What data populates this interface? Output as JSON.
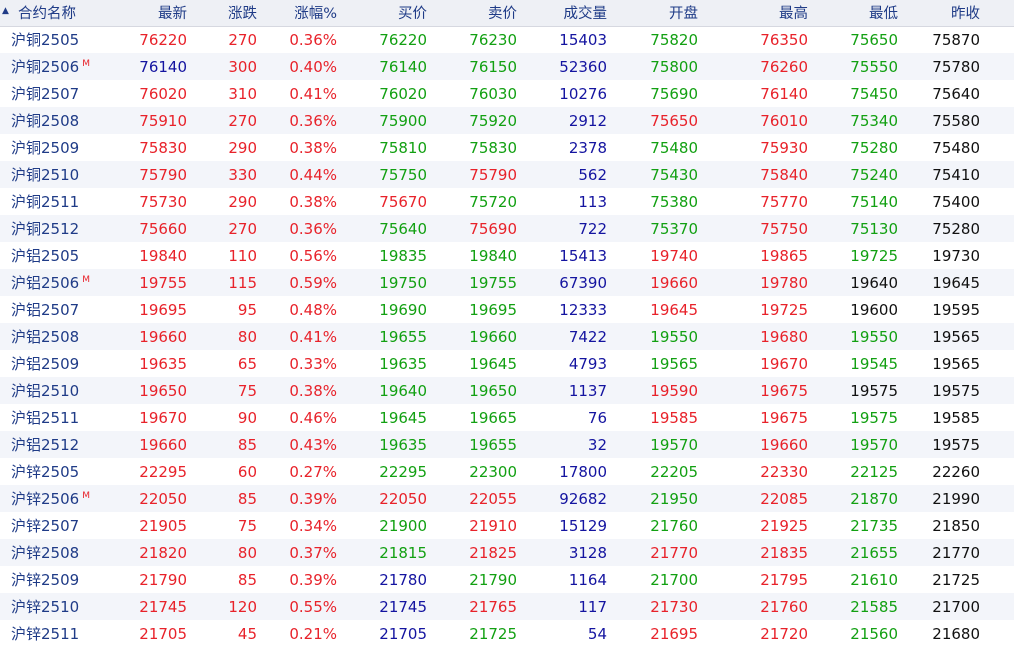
{
  "header": {
    "sort_mark": "▲",
    "name": "合约名称",
    "last": "最新",
    "change": "涨跌",
    "pct": "涨幅%",
    "bid": "买价",
    "ask": "卖价",
    "volume": "成交量",
    "open": "开盘",
    "high": "最高",
    "low": "最低",
    "prev_close": "昨收"
  },
  "colors": {
    "up": "#e8222a",
    "down": "#12a012",
    "flat": "#1414a0",
    "neutral": "#111111",
    "label": "#1f3b87"
  },
  "rows": [
    {
      "name": "沪铜2505",
      "badge": "",
      "last": "76220",
      "chg": "270",
      "pct": "0.36%",
      "bid": "76220",
      "ask": "76230",
      "vol": "15403",
      "open": "75820",
      "high": "76350",
      "low": "75650",
      "prev": "75870",
      "cl": "red",
      "cb": "green",
      "ca": "green",
      "co": "green",
      "ch": "red",
      "clo": "green"
    },
    {
      "name": "沪铜2506",
      "badge": "M",
      "last": "76140",
      "chg": "300",
      "pct": "0.40%",
      "bid": "76140",
      "ask": "76150",
      "vol": "52360",
      "open": "75800",
      "high": "76260",
      "low": "75550",
      "prev": "75780",
      "cl": "blue",
      "cb": "green",
      "ca": "green",
      "co": "green",
      "ch": "red",
      "clo": "green"
    },
    {
      "name": "沪铜2507",
      "badge": "",
      "last": "76020",
      "chg": "310",
      "pct": "0.41%",
      "bid": "76020",
      "ask": "76030",
      "vol": "10276",
      "open": "75690",
      "high": "76140",
      "low": "75450",
      "prev": "75640",
      "cl": "red",
      "cb": "green",
      "ca": "green",
      "co": "green",
      "ch": "red",
      "clo": "green"
    },
    {
      "name": "沪铜2508",
      "badge": "",
      "last": "75910",
      "chg": "270",
      "pct": "0.36%",
      "bid": "75900",
      "ask": "75920",
      "vol": "2912",
      "open": "75650",
      "high": "76010",
      "low": "75340",
      "prev": "75580",
      "cl": "red",
      "cb": "green",
      "ca": "green",
      "co": "red",
      "ch": "red",
      "clo": "green"
    },
    {
      "name": "沪铜2509",
      "badge": "",
      "last": "75830",
      "chg": "290",
      "pct": "0.38%",
      "bid": "75810",
      "ask": "75830",
      "vol": "2378",
      "open": "75480",
      "high": "75930",
      "low": "75280",
      "prev": "75480",
      "cl": "red",
      "cb": "green",
      "ca": "green",
      "co": "green",
      "ch": "red",
      "clo": "green"
    },
    {
      "name": "沪铜2510",
      "badge": "",
      "last": "75790",
      "chg": "330",
      "pct": "0.44%",
      "bid": "75750",
      "ask": "75790",
      "vol": "562",
      "open": "75430",
      "high": "75840",
      "low": "75240",
      "prev": "75410",
      "cl": "red",
      "cb": "green",
      "ca": "red",
      "co": "green",
      "ch": "red",
      "clo": "green"
    },
    {
      "name": "沪铜2511",
      "badge": "",
      "last": "75730",
      "chg": "290",
      "pct": "0.38%",
      "bid": "75670",
      "ask": "75720",
      "vol": "113",
      "open": "75380",
      "high": "75770",
      "low": "75140",
      "prev": "75400",
      "cl": "red",
      "cb": "red",
      "ca": "green",
      "co": "green",
      "ch": "red",
      "clo": "green"
    },
    {
      "name": "沪铜2512",
      "badge": "",
      "last": "75660",
      "chg": "270",
      "pct": "0.36%",
      "bid": "75640",
      "ask": "75690",
      "vol": "722",
      "open": "75370",
      "high": "75750",
      "low": "75130",
      "prev": "75280",
      "cl": "red",
      "cb": "green",
      "ca": "red",
      "co": "green",
      "ch": "red",
      "clo": "green"
    },
    {
      "name": "沪铝2505",
      "badge": "",
      "last": "19840",
      "chg": "110",
      "pct": "0.56%",
      "bid": "19835",
      "ask": "19840",
      "vol": "15413",
      "open": "19740",
      "high": "19865",
      "low": "19725",
      "prev": "19730",
      "cl": "red",
      "cb": "green",
      "ca": "green",
      "co": "red",
      "ch": "red",
      "clo": "green"
    },
    {
      "name": "沪铝2506",
      "badge": "M",
      "last": "19755",
      "chg": "115",
      "pct": "0.59%",
      "bid": "19750",
      "ask": "19755",
      "vol": "67390",
      "open": "19660",
      "high": "19780",
      "low": "19640",
      "prev": "19645",
      "cl": "red",
      "cb": "green",
      "ca": "green",
      "co": "red",
      "ch": "red",
      "clo": "black"
    },
    {
      "name": "沪铝2507",
      "badge": "",
      "last": "19695",
      "chg": "95",
      "pct": "0.48%",
      "bid": "19690",
      "ask": "19695",
      "vol": "12333",
      "open": "19645",
      "high": "19725",
      "low": "19600",
      "prev": "19595",
      "cl": "red",
      "cb": "green",
      "ca": "green",
      "co": "red",
      "ch": "red",
      "clo": "black"
    },
    {
      "name": "沪铝2508",
      "badge": "",
      "last": "19660",
      "chg": "80",
      "pct": "0.41%",
      "bid": "19655",
      "ask": "19660",
      "vol": "7422",
      "open": "19550",
      "high": "19680",
      "low": "19550",
      "prev": "19565",
      "cl": "red",
      "cb": "green",
      "ca": "green",
      "co": "green",
      "ch": "red",
      "clo": "green"
    },
    {
      "name": "沪铝2509",
      "badge": "",
      "last": "19635",
      "chg": "65",
      "pct": "0.33%",
      "bid": "19635",
      "ask": "19645",
      "vol": "4793",
      "open": "19565",
      "high": "19670",
      "low": "19545",
      "prev": "19565",
      "cl": "red",
      "cb": "green",
      "ca": "green",
      "co": "green",
      "ch": "red",
      "clo": "green"
    },
    {
      "name": "沪铝2510",
      "badge": "",
      "last": "19650",
      "chg": "75",
      "pct": "0.38%",
      "bid": "19640",
      "ask": "19650",
      "vol": "1137",
      "open": "19590",
      "high": "19675",
      "low": "19575",
      "prev": "19575",
      "cl": "red",
      "cb": "green",
      "ca": "green",
      "co": "red",
      "ch": "red",
      "clo": "black"
    },
    {
      "name": "沪铝2511",
      "badge": "",
      "last": "19670",
      "chg": "90",
      "pct": "0.46%",
      "bid": "19645",
      "ask": "19665",
      "vol": "76",
      "open": "19585",
      "high": "19675",
      "low": "19575",
      "prev": "19585",
      "cl": "red",
      "cb": "green",
      "ca": "green",
      "co": "red",
      "ch": "red",
      "clo": "green"
    },
    {
      "name": "沪铝2512",
      "badge": "",
      "last": "19660",
      "chg": "85",
      "pct": "0.43%",
      "bid": "19635",
      "ask": "19655",
      "vol": "32",
      "open": "19570",
      "high": "19660",
      "low": "19570",
      "prev": "19575",
      "cl": "red",
      "cb": "green",
      "ca": "green",
      "co": "green",
      "ch": "red",
      "clo": "green"
    },
    {
      "name": "沪锌2505",
      "badge": "",
      "last": "22295",
      "chg": "60",
      "pct": "0.27%",
      "bid": "22295",
      "ask": "22300",
      "vol": "17800",
      "open": "22205",
      "high": "22330",
      "low": "22125",
      "prev": "22260",
      "cl": "red",
      "cb": "green",
      "ca": "green",
      "co": "green",
      "ch": "red",
      "clo": "green"
    },
    {
      "name": "沪锌2506",
      "badge": "M",
      "last": "22050",
      "chg": "85",
      "pct": "0.39%",
      "bid": "22050",
      "ask": "22055",
      "vol": "92682",
      "open": "21950",
      "high": "22085",
      "low": "21870",
      "prev": "21990",
      "cl": "red",
      "cb": "red",
      "ca": "red",
      "co": "green",
      "ch": "red",
      "clo": "green"
    },
    {
      "name": "沪锌2507",
      "badge": "",
      "last": "21905",
      "chg": "75",
      "pct": "0.34%",
      "bid": "21900",
      "ask": "21910",
      "vol": "15129",
      "open": "21760",
      "high": "21925",
      "low": "21735",
      "prev": "21850",
      "cl": "red",
      "cb": "green",
      "ca": "red",
      "co": "green",
      "ch": "red",
      "clo": "green"
    },
    {
      "name": "沪锌2508",
      "badge": "",
      "last": "21820",
      "chg": "80",
      "pct": "0.37%",
      "bid": "21815",
      "ask": "21825",
      "vol": "3128",
      "open": "21770",
      "high": "21835",
      "low": "21655",
      "prev": "21770",
      "cl": "red",
      "cb": "green",
      "ca": "red",
      "co": "red",
      "ch": "red",
      "clo": "green"
    },
    {
      "name": "沪锌2509",
      "badge": "",
      "last": "21790",
      "chg": "85",
      "pct": "0.39%",
      "bid": "21780",
      "ask": "21790",
      "vol": "1164",
      "open": "21700",
      "high": "21795",
      "low": "21610",
      "prev": "21725",
      "cl": "red",
      "cb": "blue",
      "ca": "green",
      "co": "green",
      "ch": "red",
      "clo": "green"
    },
    {
      "name": "沪锌2510",
      "badge": "",
      "last": "21745",
      "chg": "120",
      "pct": "0.55%",
      "bid": "21745",
      "ask": "21765",
      "vol": "117",
      "open": "21730",
      "high": "21760",
      "low": "21585",
      "prev": "21700",
      "cl": "red",
      "cb": "blue",
      "ca": "red",
      "co": "red",
      "ch": "red",
      "clo": "green"
    },
    {
      "name": "沪锌2511",
      "badge": "",
      "last": "21705",
      "chg": "45",
      "pct": "0.21%",
      "bid": "21705",
      "ask": "21725",
      "vol": "54",
      "open": "21695",
      "high": "21720",
      "low": "21560",
      "prev": "21680",
      "cl": "red",
      "cb": "blue",
      "ca": "green",
      "co": "red",
      "ch": "red",
      "clo": "green"
    }
  ]
}
